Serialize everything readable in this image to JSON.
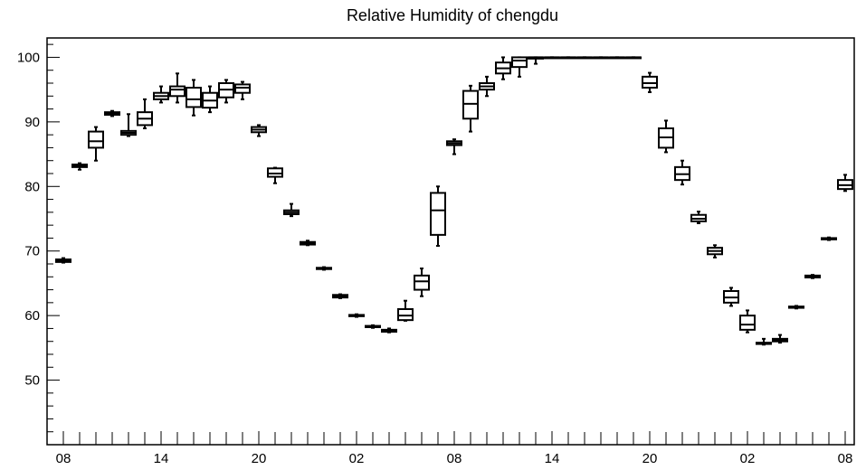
{
  "chart_data": {
    "type": "boxplot",
    "title": "Relative Humidity of chengdu",
    "xlabel": "",
    "ylabel": "",
    "ylim": [
      40,
      103
    ],
    "y_ticks": [
      50,
      60,
      70,
      80,
      90,
      100
    ],
    "x_tick_labels": [
      "08",
      "14",
      "20",
      "02",
      "08",
      "14",
      "20",
      "02",
      "08"
    ],
    "x_tick_hours": [
      0,
      6,
      12,
      18,
      24,
      30,
      36,
      42,
      48
    ],
    "boxes": [
      {
        "hour": 0,
        "min": 68.2,
        "q1": 68.3,
        "median": 68.5,
        "q3": 68.7,
        "max": 68.9
      },
      {
        "hour": 1,
        "min": 82.6,
        "q1": 83.0,
        "median": 83.2,
        "q3": 83.4,
        "max": 83.6
      },
      {
        "hour": 2,
        "min": 84.0,
        "q1": 86.0,
        "median": 87.0,
        "q3": 88.5,
        "max": 89.2
      },
      {
        "hour": 3,
        "min": 90.9,
        "q1": 91.1,
        "median": 91.3,
        "q3": 91.5,
        "max": 91.7
      },
      {
        "hour": 4,
        "min": 87.8,
        "q1": 88.0,
        "median": 88.3,
        "q3": 88.6,
        "max": 91.2
      },
      {
        "hour": 5,
        "min": 89.0,
        "q1": 89.5,
        "median": 90.5,
        "q3": 91.5,
        "max": 93.5
      },
      {
        "hour": 6,
        "min": 93.0,
        "q1": 93.5,
        "median": 94.0,
        "q3": 94.5,
        "max": 95.5
      },
      {
        "hour": 7,
        "min": 93.0,
        "q1": 94.0,
        "median": 95.0,
        "q3": 95.5,
        "max": 97.5
      },
      {
        "hour": 8,
        "min": 91.0,
        "q1": 92.3,
        "median": 93.5,
        "q3": 95.3,
        "max": 96.5
      },
      {
        "hour": 9,
        "min": 91.5,
        "q1": 92.2,
        "median": 93.3,
        "q3": 94.5,
        "max": 95.5
      },
      {
        "hour": 10,
        "min": 93.0,
        "q1": 93.8,
        "median": 95.0,
        "q3": 96.0,
        "max": 96.5
      },
      {
        "hour": 11,
        "min": 93.5,
        "q1": 94.5,
        "median": 95.3,
        "q3": 95.8,
        "max": 96.2
      },
      {
        "hour": 12,
        "min": 87.8,
        "q1": 88.4,
        "median": 88.8,
        "q3": 89.2,
        "max": 89.5
      },
      {
        "hour": 13,
        "min": 80.5,
        "q1": 81.5,
        "median": 82.0,
        "q3": 82.8,
        "max": 82.9
      },
      {
        "hour": 14,
        "min": 75.4,
        "q1": 75.7,
        "median": 76.0,
        "q3": 76.3,
        "max": 77.3
      },
      {
        "hour": 15,
        "min": 70.9,
        "q1": 71.0,
        "median": 71.2,
        "q3": 71.4,
        "max": 71.6
      },
      {
        "hour": 16,
        "min": 67.1,
        "q1": 67.2,
        "median": 67.3,
        "q3": 67.4,
        "max": 67.5
      },
      {
        "hour": 17,
        "min": 62.7,
        "q1": 62.8,
        "median": 63.0,
        "q3": 63.2,
        "max": 63.3
      },
      {
        "hour": 18,
        "min": 59.8,
        "q1": 59.9,
        "median": 60.0,
        "q3": 60.1,
        "max": 60.2
      },
      {
        "hour": 19,
        "min": 58.1,
        "q1": 58.2,
        "median": 58.3,
        "q3": 58.4,
        "max": 58.5
      },
      {
        "hour": 20,
        "min": 57.4,
        "q1": 57.5,
        "median": 57.6,
        "q3": 57.8,
        "max": 58.0
      },
      {
        "hour": 21,
        "min": 59.2,
        "q1": 59.3,
        "median": 60.0,
        "q3": 61.0,
        "max": 62.3
      },
      {
        "hour": 22,
        "min": 63.0,
        "q1": 64.0,
        "median": 65.3,
        "q3": 66.2,
        "max": 67.3
      },
      {
        "hour": 23,
        "min": 70.8,
        "q1": 72.5,
        "median": 76.3,
        "q3": 79.0,
        "max": 80.0
      },
      {
        "hour": 24,
        "min": 85.0,
        "q1": 86.4,
        "median": 86.7,
        "q3": 87.0,
        "max": 87.3
      },
      {
        "hour": 25,
        "min": 88.5,
        "q1": 90.5,
        "median": 92.8,
        "q3": 94.8,
        "max": 95.6
      },
      {
        "hour": 26,
        "min": 94.0,
        "q1": 95.0,
        "median": 95.5,
        "q3": 96.0,
        "max": 97.0
      },
      {
        "hour": 27,
        "min": 96.6,
        "q1": 97.5,
        "median": 98.3,
        "q3": 99.2,
        "max": 100.0
      },
      {
        "hour": 28,
        "min": 97.0,
        "q1": 98.5,
        "median": 99.5,
        "q3": 100.0,
        "max": 100.0
      },
      {
        "hour": 29,
        "min": 99.0,
        "q1": 99.8,
        "median": 100.0,
        "q3": 100.0,
        "max": 100.0
      },
      {
        "hour": 30,
        "min": 100.0,
        "q1": 100.0,
        "median": 100.0,
        "q3": 100.0,
        "max": 100.0
      },
      {
        "hour": 31,
        "min": 100.0,
        "q1": 100.0,
        "median": 100.0,
        "q3": 100.0,
        "max": 100.0
      },
      {
        "hour": 32,
        "min": 100.0,
        "q1": 100.0,
        "median": 100.0,
        "q3": 100.0,
        "max": 100.0
      },
      {
        "hour": 33,
        "min": 100.0,
        "q1": 100.0,
        "median": 100.0,
        "q3": 100.0,
        "max": 100.0
      },
      {
        "hour": 34,
        "min": 100.0,
        "q1": 100.0,
        "median": 100.0,
        "q3": 100.0,
        "max": 100.0
      },
      {
        "hour": 35,
        "min": 100.0,
        "q1": 100.0,
        "median": 100.0,
        "q3": 100.0,
        "max": 100.0
      },
      {
        "hour": 36,
        "min": 94.6,
        "q1": 95.3,
        "median": 96.0,
        "q3": 97.0,
        "max": 97.6
      },
      {
        "hour": 37,
        "min": 85.3,
        "q1": 86.0,
        "median": 87.6,
        "q3": 89.0,
        "max": 90.2
      },
      {
        "hour": 38,
        "min": 80.3,
        "q1": 81.0,
        "median": 81.9,
        "q3": 83.0,
        "max": 84.0
      },
      {
        "hour": 39,
        "min": 74.3,
        "q1": 74.6,
        "median": 75.0,
        "q3": 75.6,
        "max": 76.1
      },
      {
        "hour": 40,
        "min": 69.0,
        "q1": 69.5,
        "median": 70.0,
        "q3": 70.5,
        "max": 70.9
      },
      {
        "hour": 41,
        "min": 61.5,
        "q1": 62.0,
        "median": 62.8,
        "q3": 63.8,
        "max": 64.3
      },
      {
        "hour": 42,
        "min": 57.4,
        "q1": 57.8,
        "median": 58.6,
        "q3": 60.0,
        "max": 60.8
      },
      {
        "hour": 43,
        "min": 55.5,
        "q1": 55.6,
        "median": 55.7,
        "q3": 55.8,
        "max": 56.4
      },
      {
        "hour": 44,
        "min": 55.8,
        "q1": 56.0,
        "median": 56.2,
        "q3": 56.4,
        "max": 57.0
      },
      {
        "hour": 45,
        "min": 61.1,
        "q1": 61.2,
        "median": 61.3,
        "q3": 61.4,
        "max": 61.5
      },
      {
        "hour": 46,
        "min": 65.8,
        "q1": 65.9,
        "median": 66.0,
        "q3": 66.2,
        "max": 66.3
      },
      {
        "hour": 47,
        "min": 71.7,
        "q1": 71.8,
        "median": 71.9,
        "q3": 72.0,
        "max": 72.1
      },
      {
        "hour": 48,
        "min": 79.3,
        "q1": 79.6,
        "median": 80.2,
        "q3": 81.0,
        "max": 81.8
      }
    ],
    "grid": false,
    "legend": "none",
    "colors": {
      "stroke": "#000000",
      "background": "#ffffff"
    }
  }
}
